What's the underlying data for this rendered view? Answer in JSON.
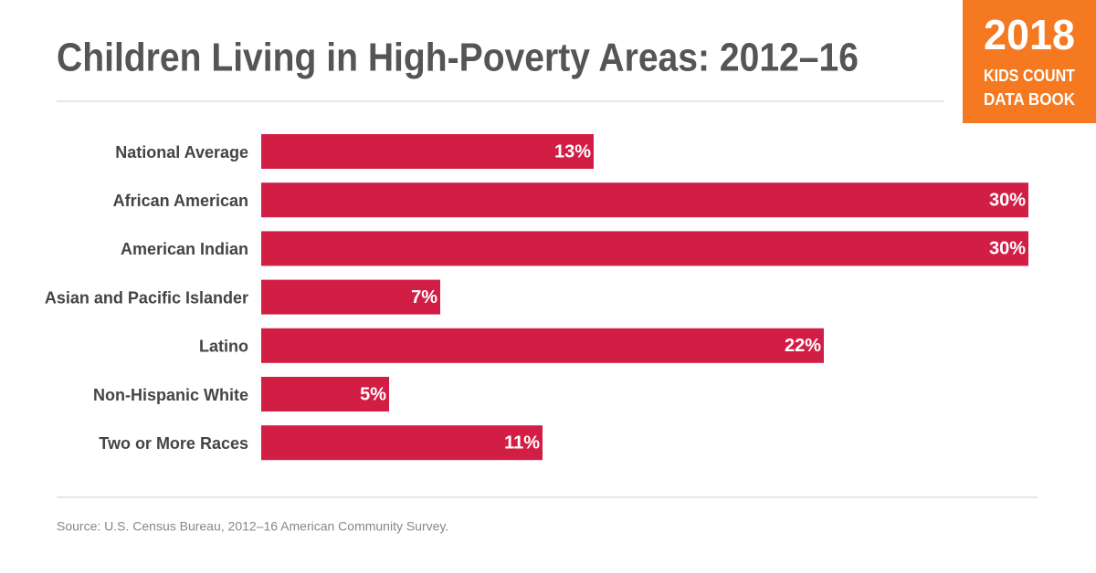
{
  "chart_data": {
    "type": "bar",
    "orientation": "horizontal",
    "title": "Children Living in High-Poverty Areas: 2012–16",
    "categories": [
      "National Average",
      "African American",
      "American Indian",
      "Asian and Pacific Islander",
      "Latino",
      "Non-Hispanic White",
      "Two or More Races"
    ],
    "values": [
      13,
      30,
      30,
      7,
      22,
      5,
      11
    ],
    "value_labels": [
      "13%",
      "30%",
      "30%",
      "7%",
      "22%",
      "5%",
      "11%"
    ],
    "color": "#d21e45",
    "xlim": [
      0,
      30
    ],
    "source": "Source: U.S. Census Bureau, 2012–16 American Community Survey.",
    "badge": {
      "year": "2018",
      "line1": "KIDS COUNT",
      "line2": "DATA BOOK"
    }
  }
}
